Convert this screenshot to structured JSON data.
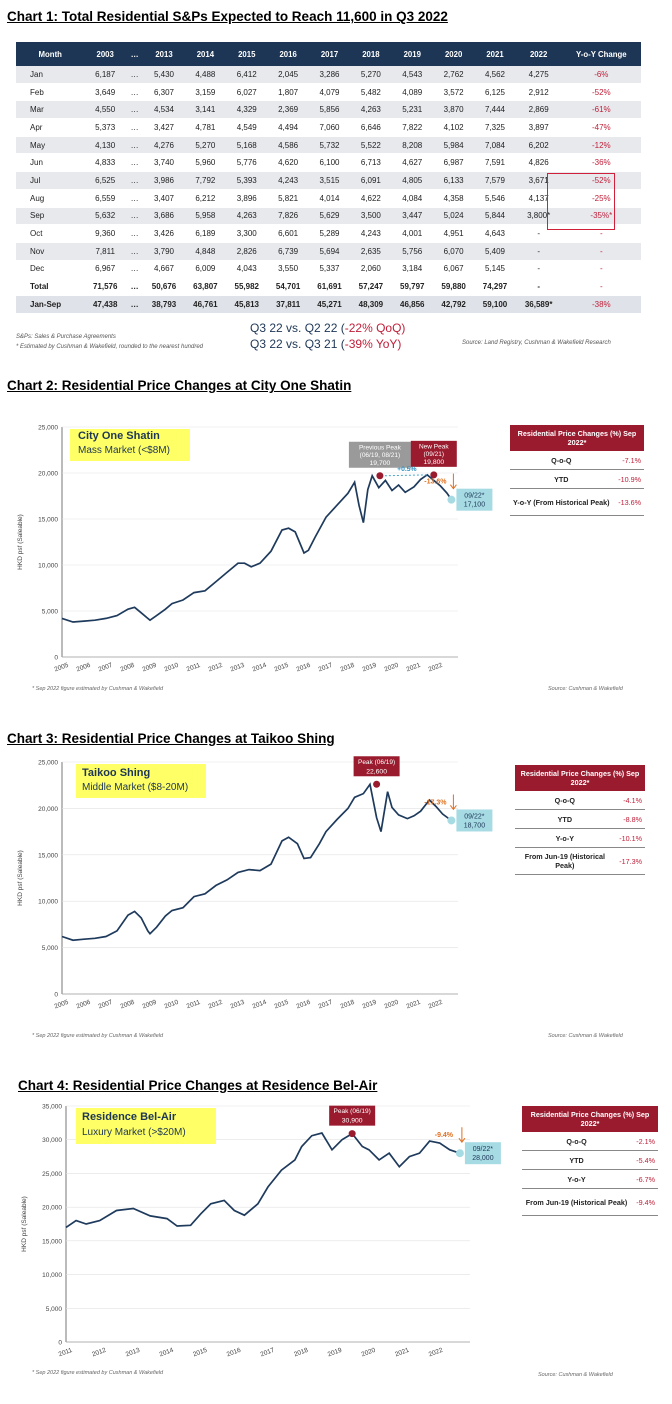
{
  "chart1": {
    "title": "Chart 1: Total Residential S&Ps Expected to Reach 11,600 in Q3 2022",
    "headers": [
      "Month",
      "2003",
      "…",
      "2013",
      "2014",
      "2015",
      "2016",
      "2017",
      "2018",
      "2019",
      "2020",
      "2021",
      "2022",
      "Y-o-Y Change"
    ],
    "rows": [
      [
        "Jan",
        "6,187",
        "…",
        "5,430",
        "4,488",
        "6,412",
        "2,045",
        "3,286",
        "5,270",
        "4,543",
        "2,762",
        "4,562",
        "4,275",
        "-6%"
      ],
      [
        "Feb",
        "3,649",
        "…",
        "6,307",
        "3,159",
        "6,027",
        "1,807",
        "4,079",
        "5,482",
        "4,089",
        "3,572",
        "6,125",
        "2,912",
        "-52%"
      ],
      [
        "Mar",
        "4,550",
        "…",
        "4,534",
        "3,141",
        "4,329",
        "2,369",
        "5,856",
        "4,263",
        "5,231",
        "3,870",
        "7,444",
        "2,869",
        "-61%"
      ],
      [
        "Apr",
        "5,373",
        "…",
        "3,427",
        "4,781",
        "4,549",
        "4,494",
        "7,060",
        "6,646",
        "7,822",
        "4,102",
        "7,325",
        "3,897",
        "-47%"
      ],
      [
        "May",
        "4,130",
        "…",
        "4,276",
        "5,270",
        "5,168",
        "4,586",
        "5,732",
        "5,522",
        "8,208",
        "5,984",
        "7,084",
        "6,202",
        "-12%"
      ],
      [
        "Jun",
        "4,833",
        "…",
        "3,740",
        "5,960",
        "5,776",
        "4,620",
        "6,100",
        "6,713",
        "4,627",
        "6,987",
        "7,591",
        "4,826",
        "-36%"
      ],
      [
        "Jul",
        "6,525",
        "…",
        "3,986",
        "7,792",
        "5,393",
        "4,243",
        "3,515",
        "6,091",
        "4,805",
        "6,133",
        "7,579",
        "3,671",
        "-52%"
      ],
      [
        "Aug",
        "6,559",
        "…",
        "3,407",
        "6,212",
        "3,896",
        "5,821",
        "4,014",
        "4,622",
        "4,084",
        "4,358",
        "5,546",
        "4,137",
        "-25%"
      ],
      [
        "Sep",
        "5,632",
        "…",
        "3,686",
        "5,958",
        "4,263",
        "7,826",
        "5,629",
        "3,500",
        "3,447",
        "5,024",
        "5,844",
        "3,800*",
        "-35%*"
      ],
      [
        "Oct",
        "9,360",
        "…",
        "3,426",
        "6,189",
        "3,300",
        "6,601",
        "5,289",
        "4,243",
        "4,001",
        "4,951",
        "4,643",
        "-",
        "-"
      ],
      [
        "Nov",
        "7,811",
        "…",
        "3,790",
        "4,848",
        "2,826",
        "6,739",
        "5,694",
        "2,635",
        "5,756",
        "6,070",
        "5,409",
        "-",
        "-"
      ],
      [
        "Dec",
        "6,967",
        "…",
        "4,667",
        "6,009",
        "4,043",
        "3,550",
        "5,337",
        "2,060",
        "3,184",
        "6,067",
        "5,145",
        "-",
        "-"
      ]
    ],
    "total": [
      "Total",
      "71,576",
      "…",
      "50,676",
      "63,807",
      "55,982",
      "54,701",
      "61,691",
      "57,247",
      "59,797",
      "59,880",
      "74,297",
      "-",
      "-"
    ],
    "jansep": [
      "Jan-Sep",
      "47,438",
      "…",
      "38,793",
      "46,761",
      "45,813",
      "37,811",
      "45,271",
      "48,309",
      "46,856",
      "42,792",
      "59,100",
      "36,589*",
      "-38%"
    ],
    "note1": "S&Ps: Sales & Purchase Agreements",
    "note2": "* Estimated by Cushman & Wakefield, rounded to the nearest hundred",
    "source": "Source: Land Registry, Cushman & Wakefield Research",
    "cmp1a": "Q3 22 vs. Q2 22 (",
    "cmp1b": "-22% QoQ)",
    "cmp2a": "Q3 22 vs. Q3 21 (",
    "cmp2b": "-39% YoY)"
  },
  "chart_data": [
    {
      "type": "line",
      "title": "Chart 2: Residential Price Changes at City One Shatin",
      "estate": "City One Shatin",
      "segment": "Mass Market (<$8M)",
      "ylabel": "HKD psf (Saleable)",
      "ylim": [
        0,
        25000
      ],
      "yticks": [
        "0",
        "5,000",
        "10,000",
        "15,000",
        "20,000",
        "25,000"
      ],
      "xlim": [
        2005,
        2023
      ],
      "xticks": [
        "2005",
        "2006",
        "2007",
        "2008",
        "2009",
        "2010",
        "2011",
        "2012",
        "2013",
        "2014",
        "2015",
        "2016",
        "2017",
        "2018",
        "2019",
        "2020",
        "2021",
        "2022"
      ],
      "x": [
        2005,
        2005.5,
        2006,
        2006.5,
        2007,
        2007.5,
        2008,
        2008.3,
        2008.6,
        2008.9,
        2009,
        2009.3,
        2009.7,
        2010,
        2010.5,
        2011,
        2011.5,
        2012,
        2012.5,
        2013,
        2013.3,
        2013.6,
        2014,
        2014.5,
        2015,
        2015.3,
        2015.6,
        2016,
        2016.2,
        2016.5,
        2017,
        2017.5,
        2018,
        2018.3,
        2018.5,
        2018.7,
        2018.9,
        2019.1,
        2019.4,
        2019.7,
        2020,
        2020.3,
        2020.6,
        2021,
        2021.3,
        2021.6,
        2021.9,
        2022.2,
        2022.5,
        2022.7
      ],
      "values": [
        4200,
        3800,
        3900,
        4000,
        4200,
        4500,
        5200,
        5400,
        4800,
        4200,
        4000,
        4500,
        5200,
        5800,
        6200,
        7000,
        7200,
        8200,
        9200,
        10200,
        10200,
        9800,
        10200,
        11500,
        13800,
        14000,
        13600,
        11300,
        11600,
        13000,
        15200,
        16500,
        17800,
        19000,
        16500,
        14600,
        18200,
        19700,
        18400,
        19200,
        18100,
        18700,
        17900,
        18500,
        19300,
        19800,
        19200,
        18600,
        17800,
        17100
      ],
      "peaks": [
        {
          "label": "Previous Peak",
          "sub": "(06/19, 08/21)",
          "value": "19,700",
          "x": 2019.45,
          "y": 19700
        },
        {
          "label": "New Peak",
          "sub": "(09/21)",
          "value": "19,800",
          "x": 2021.9,
          "y": 19800
        }
      ],
      "change_label": "+0.5%",
      "drop_label": "-13.6%",
      "latest_label": "09/22*",
      "latest_value": "17,100",
      "table_title": "Residential Price Changes (%) Sep 2022*",
      "table": [
        {
          "label": "Q-o-Q",
          "value": "-7.1%"
        },
        {
          "label": "YTD",
          "value": "-10.9%"
        },
        {
          "label": "Y-o-Y (From Historical Peak)",
          "value": "-13.6%"
        }
      ],
      "note": "* Sep 2022 figure estimated by Cushman & Wakefield",
      "source": "Source: Cushman & Wakefield"
    },
    {
      "type": "line",
      "title": "Chart 3: Residential Price Changes at Taikoo Shing",
      "estate": "Taikoo Shing",
      "segment": "Middle Market ($8-20M)",
      "ylabel": "HKD psf (Saleable)",
      "ylim": [
        0,
        25000
      ],
      "yticks": [
        "0",
        "5,000",
        "10,000",
        "15,000",
        "20,000",
        "25,000"
      ],
      "xlim": [
        2005,
        2023
      ],
      "xticks": [
        "2005",
        "2006",
        "2007",
        "2008",
        "2009",
        "2010",
        "2011",
        "2012",
        "2013",
        "2014",
        "2015",
        "2016",
        "2017",
        "2018",
        "2019",
        "2020",
        "2021",
        "2022"
      ],
      "x": [
        2005,
        2005.5,
        2006,
        2006.5,
        2007,
        2007.5,
        2008,
        2008.3,
        2008.6,
        2008.9,
        2009,
        2009.3,
        2009.7,
        2010,
        2010.5,
        2011,
        2011.5,
        2012,
        2012.5,
        2013,
        2013.5,
        2014,
        2014.5,
        2015,
        2015.3,
        2015.7,
        2016,
        2016.3,
        2016.7,
        2017,
        2017.5,
        2018,
        2018.3,
        2018.7,
        2019,
        2019.3,
        2019.5,
        2019.8,
        2020,
        2020.3,
        2020.7,
        2021,
        2021.3,
        2021.7,
        2022,
        2022.3,
        2022.7
      ],
      "values": [
        6200,
        5800,
        5900,
        6000,
        6200,
        6800,
        8500,
        8900,
        8200,
        6800,
        6500,
        7200,
        8400,
        9000,
        9300,
        10500,
        10800,
        11700,
        12300,
        13100,
        13400,
        13300,
        14000,
        16500,
        16900,
        16200,
        14600,
        14700,
        16200,
        17500,
        18800,
        20000,
        21200,
        21600,
        22600,
        19000,
        17500,
        21800,
        20100,
        19300,
        18900,
        19200,
        19700,
        20900,
        20200,
        19400,
        18700
      ],
      "peaks": [
        {
          "label": "Peak (06/19)",
          "sub": "",
          "value": "22,600",
          "x": 2019.3,
          "y": 22600
        }
      ],
      "drop_label": "-17.3%",
      "latest_label": "09/22*",
      "latest_value": "18,700",
      "table_title": "Residential Price Changes (%) Sep 2022*",
      "table": [
        {
          "label": "Q-o-Q",
          "value": "-4.1%"
        },
        {
          "label": "YTD",
          "value": "-8.8%"
        },
        {
          "label": "Y-o-Y",
          "value": "-10.1%"
        },
        {
          "label": "From Jun-19 (Historical Peak)",
          "value": "-17.3%"
        }
      ],
      "note": "* Sep 2022 figure estimated by Cushman & Wakefield",
      "source": "Source: Cushman & Wakefield"
    },
    {
      "type": "line",
      "title": "Chart 4: Residential Price Changes at Residence Bel-Air",
      "estate": "Residence Bel-Air",
      "segment": "Luxury Market (>$20M)",
      "ylabel": "HKD psf (Saleable)",
      "ylim": [
        0,
        35000
      ],
      "yticks": [
        "0",
        "5,000",
        "10,000",
        "15,000",
        "20,000",
        "25,000",
        "30,000",
        "35,000"
      ],
      "xlim": [
        2011,
        2023
      ],
      "xticks": [
        "2011",
        "2012",
        "2013",
        "2014",
        "2015",
        "2016",
        "2017",
        "2018",
        "2019",
        "2020",
        "2021",
        "2022"
      ],
      "x": [
        2011,
        2011.3,
        2011.6,
        2012,
        2012.5,
        2013,
        2013.5,
        2014,
        2014.3,
        2014.7,
        2015,
        2015.3,
        2015.7,
        2016,
        2016.3,
        2016.7,
        2017,
        2017.4,
        2017.8,
        2018,
        2018.3,
        2018.6,
        2018.9,
        2019.2,
        2019.5,
        2019.8,
        2020,
        2020.3,
        2020.6,
        2020.9,
        2021.2,
        2021.5,
        2021.8,
        2022.1,
        2022.4,
        2022.7
      ],
      "values": [
        17000,
        18000,
        17500,
        18000,
        19500,
        19800,
        18700,
        18300,
        17200,
        17300,
        19000,
        20500,
        21000,
        19500,
        18800,
        20500,
        23000,
        25500,
        27000,
        29000,
        30600,
        31000,
        28500,
        30000,
        30900,
        29000,
        28500,
        27000,
        28000,
        26000,
        27500,
        28000,
        29800,
        29500,
        28500,
        28000
      ],
      "peaks": [
        {
          "label": "Peak (06/19)",
          "sub": "",
          "value": "30,900",
          "x": 2019.5,
          "y": 30900
        }
      ],
      "drop_label": "-9.4%",
      "latest_label": "09/22*",
      "latest_value": "28,000",
      "table_title": "Residential Price Changes (%) Sep 2022*",
      "table": [
        {
          "label": "Q-o-Q",
          "value": "-2.1%"
        },
        {
          "label": "YTD",
          "value": "-5.4%"
        },
        {
          "label": "Y-o-Y",
          "value": "-6.7%"
        },
        {
          "label": "From Jun-19 (Historical Peak)",
          "value": "-9.4%"
        }
      ],
      "note": "* Sep 2022 figure estimated by Cushman & Wakefield",
      "source": "Source: Cushman & Wakefield"
    }
  ],
  "colors": {
    "navy": "#1d3655",
    "red": "#c0203a",
    "maroon": "#9a1a2e",
    "line": "#1e3a5c",
    "teal": "#a7dbe4",
    "yellow": "#ffff66"
  }
}
